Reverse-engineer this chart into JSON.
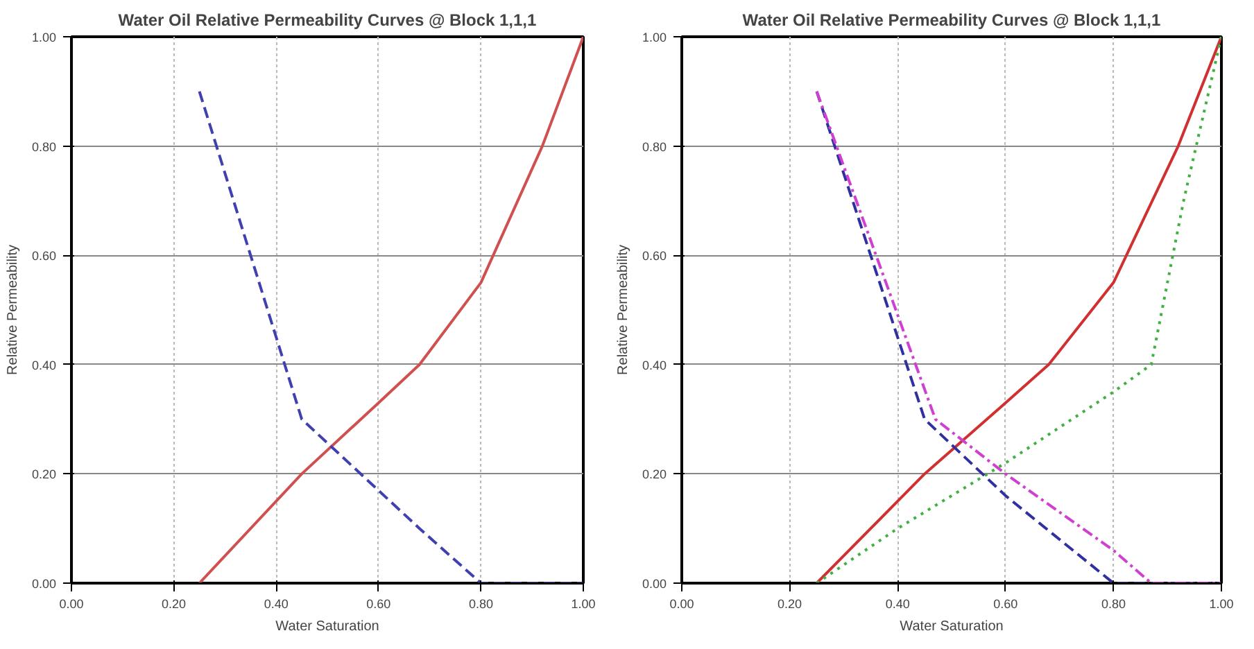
{
  "chart_data": [
    {
      "type": "line",
      "title": "Water Oil Relative Permeability Curves @ Block 1,1,1",
      "xlabel": "Water Saturation",
      "ylabel": "Relative Permeability",
      "xlim": [
        0,
        1
      ],
      "ylim": [
        0,
        1
      ],
      "xticks": [
        {
          "value": 0,
          "label": "0.00"
        },
        {
          "value": 0.2,
          "label": "0.20"
        },
        {
          "value": 0.4,
          "label": "0.40"
        },
        {
          "value": 0.6,
          "label": "0.60"
        },
        {
          "value": 0.8,
          "label": "0.80"
        },
        {
          "value": 1,
          "label": "1.00"
        }
      ],
      "yticks": [
        {
          "value": 0,
          "label": "0.00"
        },
        {
          "value": 0.2,
          "label": "0.20"
        },
        {
          "value": 0.4,
          "label": "0.40"
        },
        {
          "value": 0.6,
          "label": "0.60"
        },
        {
          "value": 0.8,
          "label": "0.80"
        },
        {
          "value": 1,
          "label": "1.00"
        }
      ],
      "grid": true,
      "series": [
        {
          "color": "#d05050",
          "line_style": "solid",
          "x": [
            0.25,
            0.45,
            0.6,
            0.68,
            0.8,
            0.92,
            1.0
          ],
          "values": [
            0,
            0.2,
            0.33,
            0.4,
            0.55,
            0.8,
            1.0
          ]
        },
        {
          "color": "#4040b0",
          "line_style": "dashed",
          "x": [
            0.25,
            0.45,
            0.68,
            0.8,
            1.0
          ],
          "values": [
            0.9,
            0.3,
            0.1,
            0,
            0
          ]
        }
      ]
    },
    {
      "type": "line",
      "title": "Water Oil Relative Permeability Curves @ Block 1,1,1",
      "xlabel": "Water Saturation",
      "ylabel": "Relative Permeability",
      "xlim": [
        0,
        1
      ],
      "ylim": [
        0,
        1
      ],
      "xticks": [
        {
          "value": 0,
          "label": "0.00"
        },
        {
          "value": 0.2,
          "label": "0.20"
        },
        {
          "value": 0.4,
          "label": "0.40"
        },
        {
          "value": 0.6,
          "label": "0.60"
        },
        {
          "value": 0.8,
          "label": "0.80"
        },
        {
          "value": 1,
          "label": "1.00"
        }
      ],
      "yticks": [
        {
          "value": 0,
          "label": "0.00"
        },
        {
          "value": 0.2,
          "label": "0.20"
        },
        {
          "value": 0.4,
          "label": "0.40"
        },
        {
          "value": 0.6,
          "label": "0.60"
        },
        {
          "value": 0.8,
          "label": "0.80"
        },
        {
          "value": 1,
          "label": "1.00"
        }
      ],
      "grid": true,
      "series": [
        {
          "color": "#d03030",
          "line_style": "solid",
          "x": [
            0.25,
            0.45,
            0.6,
            0.68,
            0.8,
            0.92,
            1.0
          ],
          "values": [
            0,
            0.2,
            0.33,
            0.4,
            0.55,
            0.8,
            1.0
          ]
        },
        {
          "color": "#40b040",
          "line_style": "dotted",
          "x": [
            0.25,
            0.4,
            0.6,
            0.8,
            0.87,
            0.93,
            1.0
          ],
          "values": [
            0,
            0.1,
            0.22,
            0.35,
            0.4,
            0.7,
            1.0
          ]
        },
        {
          "color": "#3030a0",
          "line_style": "dashed",
          "x": [
            0.25,
            0.45,
            0.6,
            0.8,
            1.0
          ],
          "values": [
            0.9,
            0.3,
            0.16,
            0,
            0
          ]
        },
        {
          "color": "#d040d0",
          "line_style": "dashdot",
          "x": [
            0.25,
            0.47,
            0.6,
            0.8,
            0.87,
            1.0
          ],
          "values": [
            0.9,
            0.3,
            0.2,
            0.06,
            0,
            0
          ]
        }
      ]
    }
  ]
}
